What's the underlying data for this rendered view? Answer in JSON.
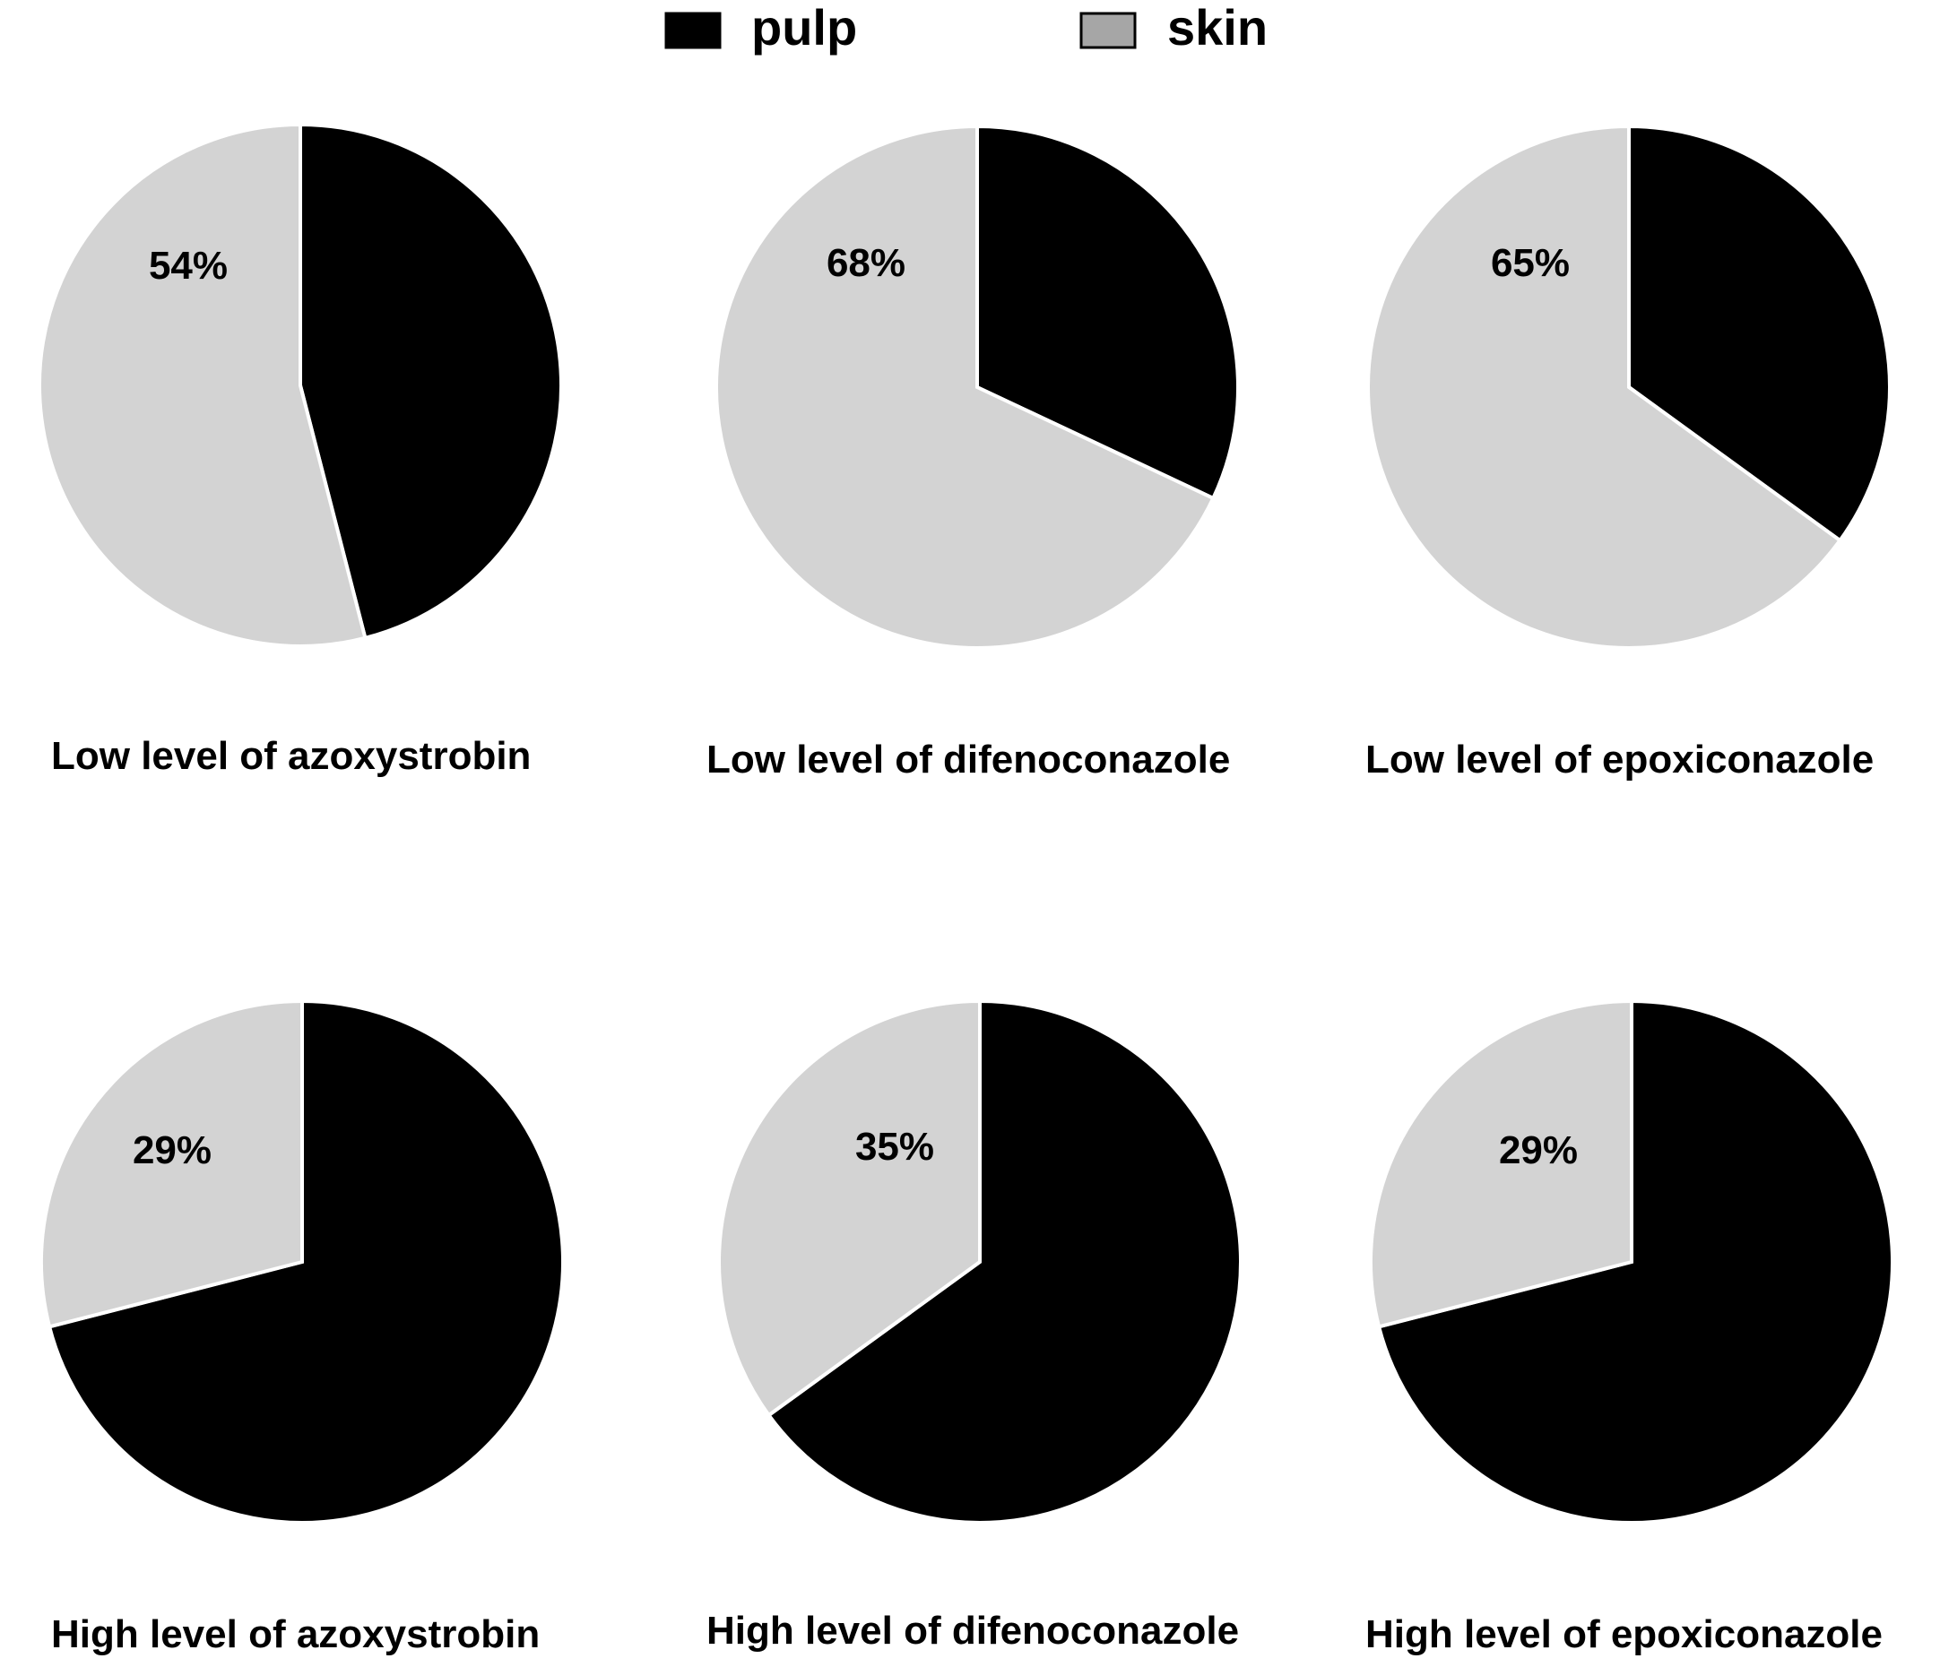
{
  "legend": {
    "items": [
      {
        "label": "pulp",
        "color": "#000000"
      },
      {
        "label": "skin",
        "color": "#a6a6a6"
      }
    ]
  },
  "colors": {
    "pulp": "#000000",
    "skin": "#d3d3d3",
    "separator": "#ffffff"
  },
  "chart_data": [
    {
      "type": "pie",
      "title": "Low level of azoxystrobin",
      "slices": [
        {
          "name": "pulp",
          "value": 46
        },
        {
          "name": "skin",
          "value": 54
        }
      ],
      "label": "54%"
    },
    {
      "type": "pie",
      "title": "Low level of difenoconazole",
      "slices": [
        {
          "name": "pulp",
          "value": 32
        },
        {
          "name": "skin",
          "value": 68
        }
      ],
      "label": "68%"
    },
    {
      "type": "pie",
      "title": "Low level of epoxiconazole",
      "slices": [
        {
          "name": "pulp",
          "value": 35
        },
        {
          "name": "skin",
          "value": 65
        }
      ],
      "label": "65%"
    },
    {
      "type": "pie",
      "title": "High level of azoxystrobin",
      "slices": [
        {
          "name": "pulp",
          "value": 71
        },
        {
          "name": "skin",
          "value": 29
        }
      ],
      "label": "29%"
    },
    {
      "type": "pie",
      "title": "High level of difenoconazole",
      "slices": [
        {
          "name": "pulp",
          "value": 65
        },
        {
          "name": "skin",
          "value": 35
        }
      ],
      "label": "35%"
    },
    {
      "type": "pie",
      "title": "High level of epoxiconazole",
      "slices": [
        {
          "name": "pulp",
          "value": 71
        },
        {
          "name": "skin",
          "value": 29
        }
      ],
      "label": "29%"
    }
  ]
}
